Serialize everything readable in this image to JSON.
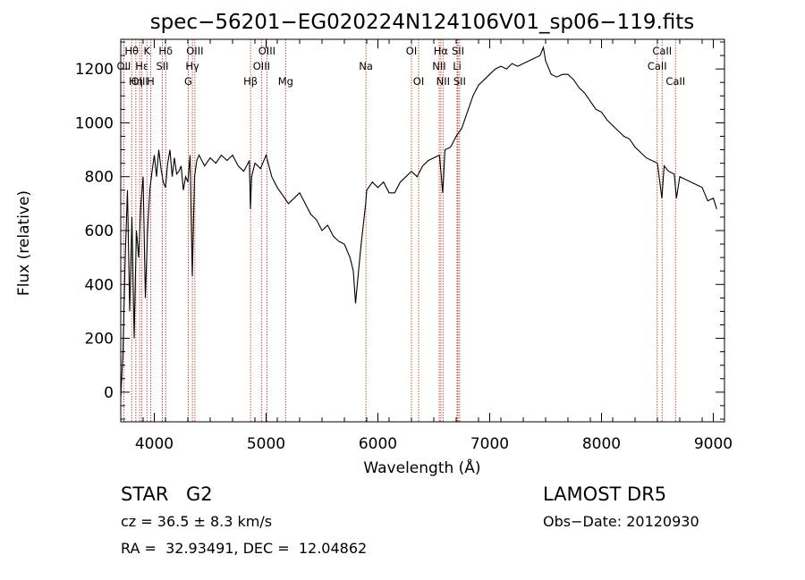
{
  "chart_data": {
    "type": "line",
    "title": "spec−56201−EG020224N124106V01_sp06−119.fits",
    "xlabel": "Wavelength (Å)",
    "ylabel": "Flux (relative)",
    "xlim": [
      3700,
      9100
    ],
    "ylim": [
      -110,
      1310
    ],
    "xticks": [
      4000,
      5000,
      6000,
      7000,
      8000,
      9000
    ],
    "yticks": [
      0,
      200,
      400,
      600,
      800,
      1000,
      1200
    ],
    "grid": false,
    "line_color": "#000000",
    "marker_color": "#c0392b",
    "spectral_lines": [
      {
        "label": "Hθ",
        "wavelength": 3798,
        "row": 0
      },
      {
        "label": "K",
        "wavelength": 3934,
        "row": 0
      },
      {
        "label": "Hδ",
        "wavelength": 4102,
        "row": 0
      },
      {
        "label": "OIII",
        "wavelength": 4363,
        "row": 0
      },
      {
        "label": "OIII",
        "wavelength": 5007,
        "row": 0
      },
      {
        "label": "OI",
        "wavelength": 6300,
        "row": 0
      },
      {
        "label": "Hα",
        "wavelength": 6563,
        "row": 0
      },
      {
        "label": "SII",
        "wavelength": 6716,
        "row": 0
      },
      {
        "label": "CaII",
        "wavelength": 8542,
        "row": 0
      },
      {
        "label": "OII",
        "wavelength": 3727,
        "row": 1
      },
      {
        "label": "Hε",
        "wavelength": 3889,
        "row": 1
      },
      {
        "label": "SII",
        "wavelength": 4072,
        "row": 1
      },
      {
        "label": "Hγ",
        "wavelength": 4341,
        "row": 1
      },
      {
        "label": "OIII",
        "wavelength": 4959,
        "row": 1
      },
      {
        "label": "Na",
        "wavelength": 5893,
        "row": 1
      },
      {
        "label": "NII",
        "wavelength": 6548,
        "row": 1
      },
      {
        "label": "Li",
        "wavelength": 6708,
        "row": 1
      },
      {
        "label": "CaII",
        "wavelength": 8498,
        "row": 1
      },
      {
        "label": "OIII",
        "wavelength": 3869,
        "row": 2
      },
      {
        "label": "Hη",
        "wavelength": 3835,
        "row": 2
      },
      {
        "label": "H",
        "wavelength": 3968,
        "row": 2
      },
      {
        "label": "G",
        "wavelength": 4304,
        "row": 2
      },
      {
        "label": "Hβ",
        "wavelength": 4861,
        "row": 2
      },
      {
        "label": "Mg",
        "wavelength": 5175,
        "row": 2
      },
      {
        "label": "OI",
        "wavelength": 6364,
        "row": 2
      },
      {
        "label": "NII",
        "wavelength": 6583,
        "row": 2
      },
      {
        "label": "SII",
        "wavelength": 6731,
        "row": 2
      },
      {
        "label": "CaII",
        "wavelength": 8662,
        "row": 2
      }
    ],
    "series": [
      {
        "x": [
          3700,
          3720,
          3740,
          3760,
          3780,
          3800,
          3820,
          3840,
          3860,
          3880,
          3900,
          3920,
          3940,
          3960,
          3980,
          4000,
          4020,
          4040,
          4060,
          4080,
          4100,
          4120,
          4140,
          4160,
          4180,
          4200,
          4220,
          4240,
          4260,
          4280,
          4300,
          4320,
          4340,
          4360,
          4380,
          4400,
          4450,
          4500,
          4550,
          4600,
          4650,
          4700,
          4750,
          4800,
          4850,
          4860,
          4870,
          4900,
          4950,
          5000,
          5050,
          5100,
          5150,
          5200,
          5250,
          5300,
          5350,
          5400,
          5450,
          5500,
          5550,
          5600,
          5650,
          5700,
          5750,
          5780,
          5800,
          5820,
          5850,
          5890,
          5900,
          5950,
          6000,
          6050,
          6100,
          6150,
          6200,
          6250,
          6300,
          6350,
          6400,
          6450,
          6500,
          6550,
          6580,
          6600,
          6650,
          6700,
          6750,
          6800,
          6850,
          6900,
          6950,
          7000,
          7050,
          7100,
          7150,
          7200,
          7250,
          7300,
          7350,
          7400,
          7450,
          7480,
          7500,
          7550,
          7600,
          7650,
          7700,
          7750,
          7800,
          7850,
          7900,
          7950,
          8000,
          8050,
          8100,
          8150,
          8200,
          8250,
          8300,
          8350,
          8400,
          8450,
          8500,
          8540,
          8560,
          8600,
          8650,
          8670,
          8700,
          8750,
          8800,
          8850,
          8900,
          8950,
          9000,
          9030
        ],
        "y": [
          -20,
          150,
          500,
          750,
          300,
          650,
          200,
          600,
          500,
          700,
          800,
          350,
          600,
          750,
          820,
          880,
          800,
          900,
          830,
          780,
          760,
          850,
          900,
          800,
          870,
          810,
          820,
          840,
          750,
          800,
          780,
          880,
          430,
          800,
          860,
          880,
          840,
          870,
          850,
          880,
          860,
          880,
          840,
          820,
          860,
          680,
          800,
          850,
          830,
          880,
          800,
          760,
          730,
          700,
          720,
          740,
          700,
          660,
          640,
          600,
          620,
          580,
          560,
          550,
          500,
          450,
          330,
          420,
          550,
          700,
          750,
          780,
          760,
          780,
          740,
          740,
          780,
          800,
          820,
          800,
          840,
          860,
          870,
          880,
          740,
          900,
          910,
          950,
          980,
          1040,
          1100,
          1140,
          1160,
          1180,
          1200,
          1210,
          1200,
          1220,
          1210,
          1220,
          1230,
          1240,
          1250,
          1280,
          1230,
          1180,
          1170,
          1180,
          1180,
          1160,
          1130,
          1110,
          1080,
          1050,
          1040,
          1010,
          990,
          970,
          950,
          940,
          910,
          890,
          870,
          860,
          850,
          720,
          840,
          820,
          810,
          720,
          800,
          790,
          780,
          770,
          760,
          710,
          720,
          680
        ]
      }
    ]
  },
  "info": {
    "object_class": "STAR",
    "subclass": "G2",
    "survey": "LAMOST DR5",
    "cz": "cz = 36.5 ± 8.3 km/s",
    "obs_date": "Obs−Date: 20120930",
    "coords": "RA =  32.93491, DEC =  12.04862"
  }
}
